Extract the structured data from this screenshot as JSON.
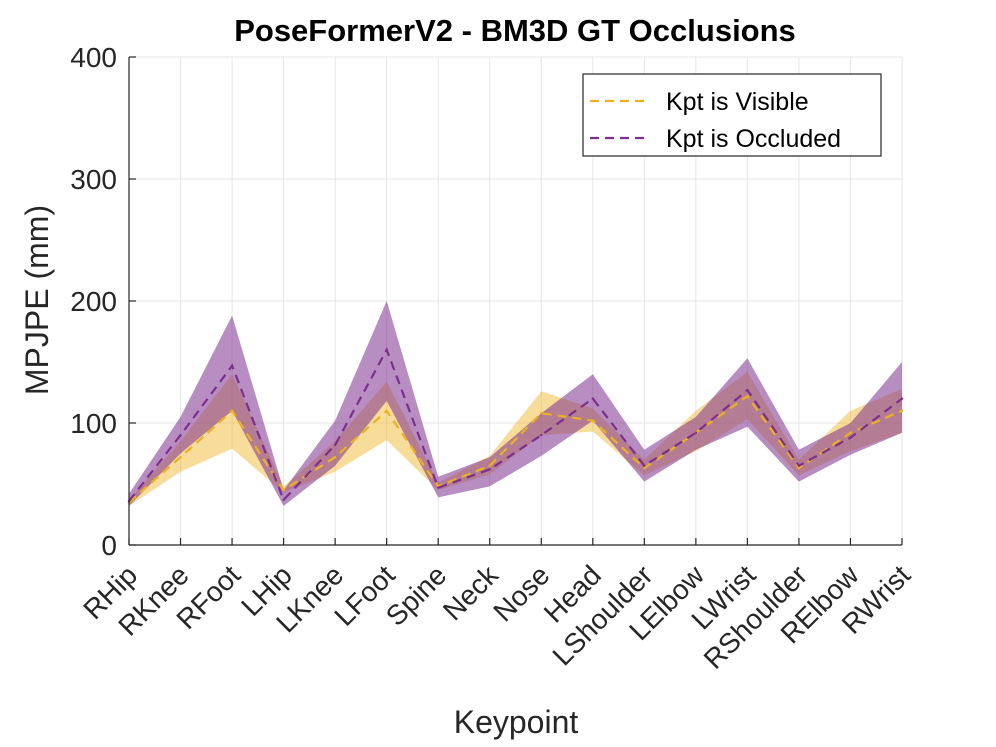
{
  "chart_data": {
    "type": "line",
    "title": "PoseFormerV2 - BM3D GT Occlusions",
    "xlabel": "Keypoint",
    "ylabel": "MPJPE (mm)",
    "ylim": [
      0,
      400
    ],
    "yticks": [
      0,
      100,
      200,
      300,
      400
    ],
    "grid": true,
    "legend_position": "top-right",
    "categories": [
      "RHip",
      "RKnee",
      "RFoot",
      "LHip",
      "LKnee",
      "LFoot",
      "Spine",
      "Neck",
      "Nose",
      "Head",
      "LShoulder",
      "LElbow",
      "LWrist",
      "RShoulder",
      "RElbow",
      "RWrist"
    ],
    "series": [
      {
        "name": "Kpt is Visible",
        "color": "#EDB120",
        "line_style": "dashed",
        "values": [
          35,
          72,
          110,
          45,
          72,
          110,
          48,
          65,
          108,
          102,
          63,
          92,
          122,
          63,
          92,
          110
        ],
        "lower": [
          32,
          60,
          79,
          43,
          60,
          86,
          45,
          58,
          90,
          93,
          57,
          77,
          103,
          57,
          77,
          92
        ],
        "upper": [
          37,
          85,
          140,
          48,
          85,
          134,
          51,
          73,
          126,
          112,
          70,
          110,
          142,
          70,
          110,
          128
        ]
      },
      {
        "name": "Kpt is Occluded",
        "color": "#7E2F8E",
        "line_style": "dashed",
        "values": [
          36,
          90,
          147,
          37,
          82,
          160,
          47,
          62,
          90,
          120,
          65,
          92,
          127,
          65,
          88,
          120
        ],
        "lower": [
          32,
          75,
          110,
          32,
          65,
          118,
          39,
          48,
          73,
          102,
          52,
          78,
          97,
          52,
          74,
          92
        ],
        "upper": [
          42,
          105,
          188,
          45,
          102,
          200,
          56,
          72,
          108,
          140,
          78,
          105,
          153,
          78,
          100,
          150
        ]
      }
    ]
  }
}
